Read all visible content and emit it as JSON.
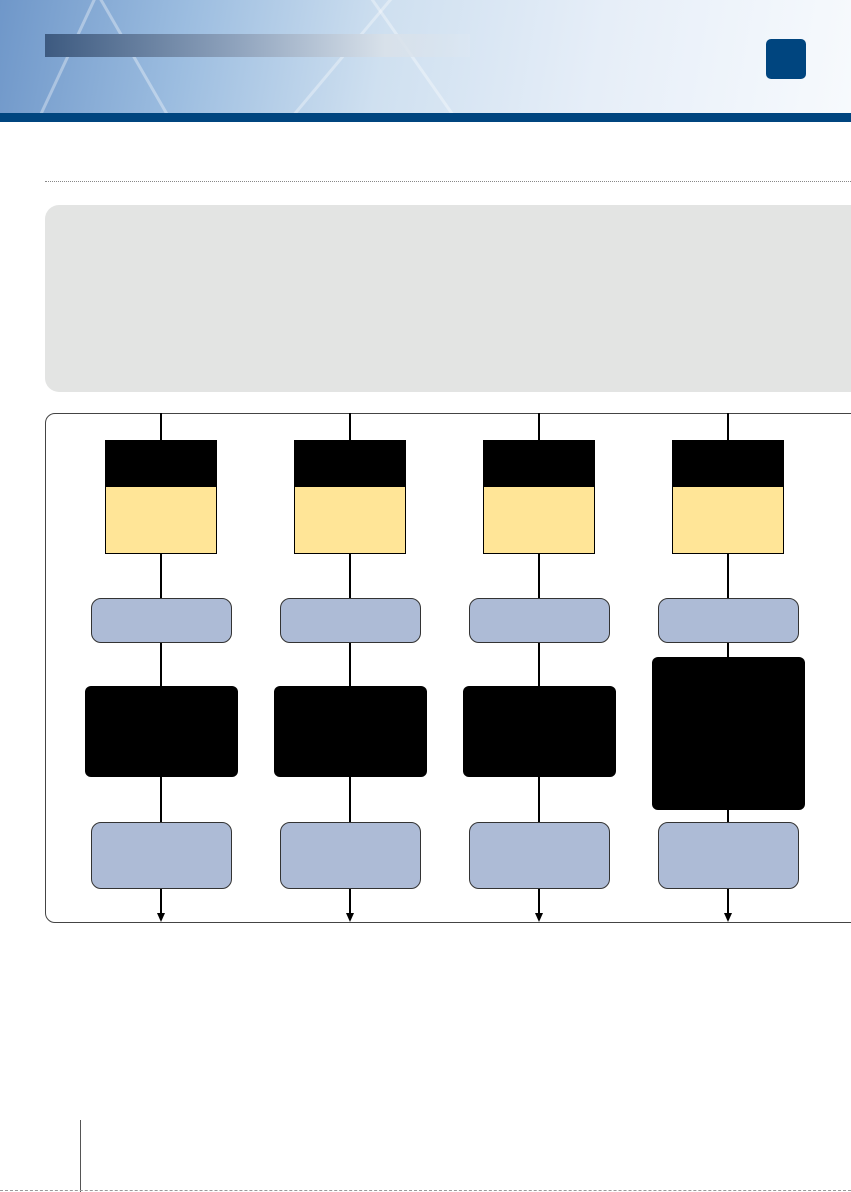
{
  "colors": {
    "brand_blue": "#00457f",
    "intro_box": "#e3e4e3",
    "header_fill": "#ffe597",
    "node_blue": "#adbbd6",
    "node_black": "#000000"
  },
  "diagram": {
    "columns": [
      {
        "id": 1
      },
      {
        "id": 2
      },
      {
        "id": 3
      },
      {
        "id": 4
      }
    ]
  }
}
